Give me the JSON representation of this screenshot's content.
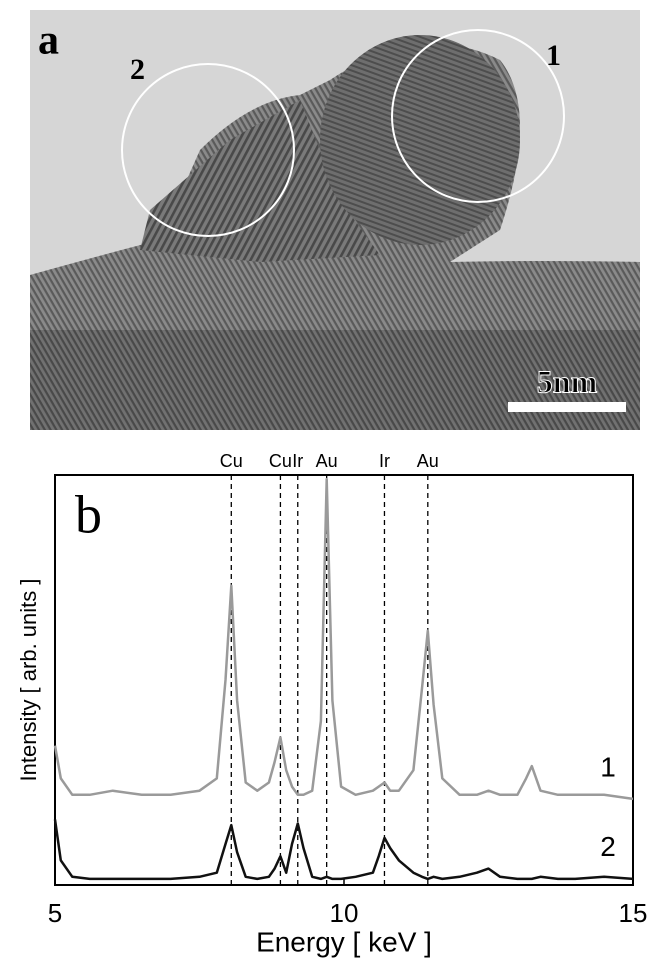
{
  "panel_a": {
    "label": "a",
    "regions": [
      "1",
      "2"
    ],
    "scale_bar": "5nm"
  },
  "chart_data": {
    "type": "line",
    "panel_label": "b",
    "x_label": "Energy [ keV ]",
    "y_label": "Intensity [ arb. units ]",
    "xlim": [
      5,
      15
    ],
    "xticks": [
      5,
      10,
      15
    ],
    "ylim": [
      0,
      100
    ],
    "x": [
      5.0,
      5.1,
      5.3,
      5.6,
      6.0,
      6.5,
      7.0,
      7.5,
      7.8,
      7.95,
      8.05,
      8.15,
      8.3,
      8.5,
      8.7,
      8.8,
      8.9,
      9.0,
      9.1,
      9.2,
      9.3,
      9.45,
      9.6,
      9.7,
      9.8,
      9.95,
      10.2,
      10.5,
      10.6,
      10.7,
      10.8,
      10.95,
      11.2,
      11.35,
      11.45,
      11.55,
      11.7,
      12.0,
      12.3,
      12.5,
      12.7,
      13.0,
      13.15,
      13.25,
      13.4,
      13.7,
      14.0,
      14.5,
      15.0
    ],
    "series": [
      {
        "name": "1",
        "color": "#9a9a9a",
        "values": [
          34,
          26,
          22,
          22,
          23,
          22,
          22,
          23,
          26,
          50,
          73,
          45,
          25,
          23,
          25,
          30,
          36,
          28,
          24,
          22,
          22,
          23,
          40,
          99,
          45,
          24,
          22,
          23,
          24,
          25,
          23,
          23,
          28,
          48,
          62,
          44,
          26,
          22,
          22,
          23,
          22,
          22,
          26,
          29,
          23,
          22,
          22,
          22,
          21
        ]
      },
      {
        "name": "2",
        "color": "#111111",
        "values": [
          16,
          6,
          2,
          1.5,
          1.5,
          1.5,
          1.5,
          2,
          3,
          10,
          14.6,
          8,
          2,
          1.5,
          2,
          4,
          7,
          3,
          10,
          15,
          9,
          2,
          1.5,
          2,
          1.5,
          1.5,
          2,
          3,
          7,
          11.5,
          9,
          6,
          3,
          2,
          1.5,
          2,
          1.5,
          2,
          3,
          4,
          2,
          1.5,
          1.5,
          1.5,
          2,
          1.5,
          1.5,
          2,
          1.5
        ]
      }
    ],
    "peak_lines": [
      {
        "label": "Cu",
        "x": 8.05
      },
      {
        "label": "Cu",
        "x": 8.9
      },
      {
        "label": "Ir",
        "x": 9.2
      },
      {
        "label": "Au",
        "x": 9.7
      },
      {
        "label": "Ir",
        "x": 10.7
      },
      {
        "label": "Au",
        "x": 11.45
      }
    ]
  }
}
